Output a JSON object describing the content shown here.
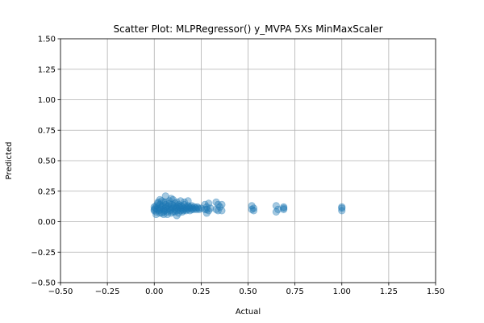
{
  "chart_data": {
    "type": "scatter",
    "title": "Scatter Plot: MLPRegressor() y_MVPA 5Xs MinMaxScaler",
    "xlabel": "Actual",
    "ylabel": "Predicted",
    "xlim": [
      -0.5,
      1.5
    ],
    "ylim": [
      -0.5,
      1.5
    ],
    "xticks": [
      -0.5,
      -0.25,
      0.0,
      0.25,
      0.5,
      0.75,
      1.0,
      1.25,
      1.5
    ],
    "yticks": [
      -0.5,
      -0.25,
      0.0,
      0.25,
      0.5,
      0.75,
      1.0,
      1.25,
      1.5
    ],
    "xtick_labels": [
      "−0.50",
      "−0.25",
      "0.00",
      "0.25",
      "0.50",
      "0.75",
      "1.00",
      "1.25",
      "1.50"
    ],
    "ytick_labels": [
      "−0.50",
      "−0.25",
      "0.00",
      "0.25",
      "0.50",
      "0.75",
      "1.00",
      "1.25",
      "1.50"
    ],
    "grid": true,
    "marker_color": "#1f77b4",
    "marker_alpha": 0.4,
    "points": {
      "x": [
        0.0,
        0.0,
        0.0,
        0.005,
        0.01,
        0.01,
        0.015,
        0.02,
        0.02,
        0.025,
        0.03,
        0.03,
        0.035,
        0.04,
        0.04,
        0.045,
        0.05,
        0.05,
        0.055,
        0.06,
        0.06,
        0.065,
        0.07,
        0.07,
        0.075,
        0.08,
        0.08,
        0.085,
        0.09,
        0.09,
        0.095,
        0.1,
        0.1,
        0.105,
        0.11,
        0.11,
        0.115,
        0.12,
        0.12,
        0.125,
        0.13,
        0.13,
        0.135,
        0.14,
        0.14,
        0.145,
        0.15,
        0.15,
        0.155,
        0.16,
        0.16,
        0.165,
        0.17,
        0.17,
        0.175,
        0.18,
        0.18,
        0.185,
        0.19,
        0.19,
        0.195,
        0.2,
        0.2,
        0.205,
        0.21,
        0.215,
        0.22,
        0.225,
        0.23,
        0.235,
        0.24,
        0.25,
        0.01,
        0.03,
        0.05,
        0.07,
        0.09,
        0.11,
        0.13,
        0.15,
        0.02,
        0.04,
        0.06,
        0.08,
        0.1,
        0.12,
        0.14,
        0.16,
        0.06,
        0.09,
        0.03,
        0.12,
        0.18,
        0.05,
        0.27,
        0.28,
        0.28,
        0.29,
        0.29,
        0.3,
        0.27,
        0.28,
        0.33,
        0.33,
        0.34,
        0.34,
        0.35,
        0.36,
        0.36,
        0.52,
        0.52,
        0.53,
        0.53,
        0.65,
        0.65,
        0.66,
        0.69,
        0.69,
        0.69,
        1.0,
        1.0,
        1.0
      ],
      "y": [
        0.1,
        0.12,
        0.09,
        0.11,
        0.13,
        0.08,
        0.1,
        0.12,
        0.15,
        0.09,
        0.11,
        0.14,
        0.1,
        0.12,
        0.07,
        0.13,
        0.1,
        0.16,
        0.09,
        0.11,
        0.14,
        0.12,
        0.1,
        0.08,
        0.13,
        0.11,
        0.15,
        0.09,
        0.12,
        0.1,
        0.14,
        0.11,
        0.08,
        0.13,
        0.1,
        0.15,
        0.12,
        0.09,
        0.11,
        0.13,
        0.1,
        0.14,
        0.12,
        0.09,
        0.11,
        0.13,
        0.1,
        0.12,
        0.09,
        0.11,
        0.14,
        0.1,
        0.12,
        0.09,
        0.11,
        0.13,
        0.1,
        0.12,
        0.09,
        0.11,
        0.12,
        0.1,
        0.13,
        0.11,
        0.1,
        0.12,
        0.11,
        0.1,
        0.12,
        0.11,
        0.1,
        0.11,
        0.06,
        0.07,
        0.08,
        0.06,
        0.07,
        0.08,
        0.07,
        0.08,
        0.16,
        0.17,
        0.16,
        0.17,
        0.18,
        0.16,
        0.17,
        0.16,
        0.21,
        0.19,
        0.18,
        0.05,
        0.17,
        0.06,
        0.1,
        0.07,
        0.12,
        0.15,
        0.09,
        0.11,
        0.14,
        0.1,
        0.16,
        0.1,
        0.14,
        0.09,
        0.12,
        0.14,
        0.09,
        0.13,
        0.1,
        0.11,
        0.09,
        0.13,
        0.08,
        0.1,
        0.12,
        0.1,
        0.11,
        0.12,
        0.09,
        0.11
      ]
    }
  }
}
